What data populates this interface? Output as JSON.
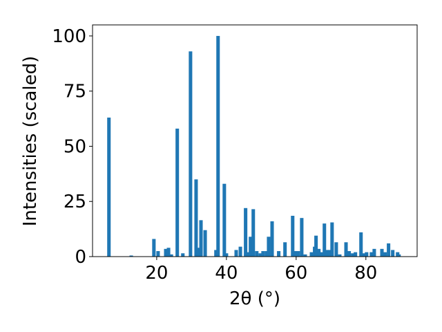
{
  "chart_data": {
    "type": "bar",
    "xlabel": "2θ (°)",
    "ylabel": "Intensities (scaled)",
    "color": "#1f77b4",
    "x": [
      6.3,
      12.7,
      19.2,
      20.4,
      22.6,
      23.4,
      24.2,
      25.9,
      27.5,
      29.7,
      31.3,
      31.9,
      32.7,
      33.9,
      37.0,
      37.6,
      39.4,
      40.0,
      42.8,
      44.0,
      45.5,
      46.1,
      46.9,
      47.7,
      48.7,
      49.7,
      50.5,
      51.5,
      52.1,
      53.1,
      55.0,
      56.8,
      59.0,
      59.8,
      60.6,
      61.6,
      62.6,
      64.4,
      65.3,
      65.7,
      66.5,
      67.3,
      68.1,
      68.9,
      69.5,
      70.3,
      71.5,
      72.5,
      74.3,
      75.2,
      76.2,
      77.0,
      78.6,
      79.4,
      80.2,
      81.6,
      82.4,
      84.6,
      85.5,
      86.5,
      87.7,
      89.1,
      89.5
    ],
    "values": [
      63,
      0.5,
      8,
      2.5,
      3.5,
      4,
      1,
      58,
      1.5,
      93,
      35,
      4,
      16.5,
      12,
      3,
      100,
      33,
      1.5,
      3,
      4.5,
      22,
      2,
      9,
      21.5,
      2.5,
      1.5,
      2.5,
      2.5,
      9,
      16,
      2.5,
      6.5,
      18.5,
      2.5,
      2.5,
      17.5,
      1,
      2,
      4.5,
      9.5,
      3.5,
      2,
      15,
      3,
      3,
      15.5,
      6.5,
      1,
      6.5,
      2.5,
      1.5,
      2,
      11,
      1.5,
      2,
      2,
      3.5,
      3.5,
      2,
      6,
      3,
      2,
      1
    ],
    "xlim": [
      1.6,
      94.7
    ],
    "xticks": [
      20,
      40,
      60,
      80
    ],
    "ylim": [
      0,
      105
    ],
    "yticks": [
      0,
      25,
      50,
      75,
      100
    ]
  }
}
